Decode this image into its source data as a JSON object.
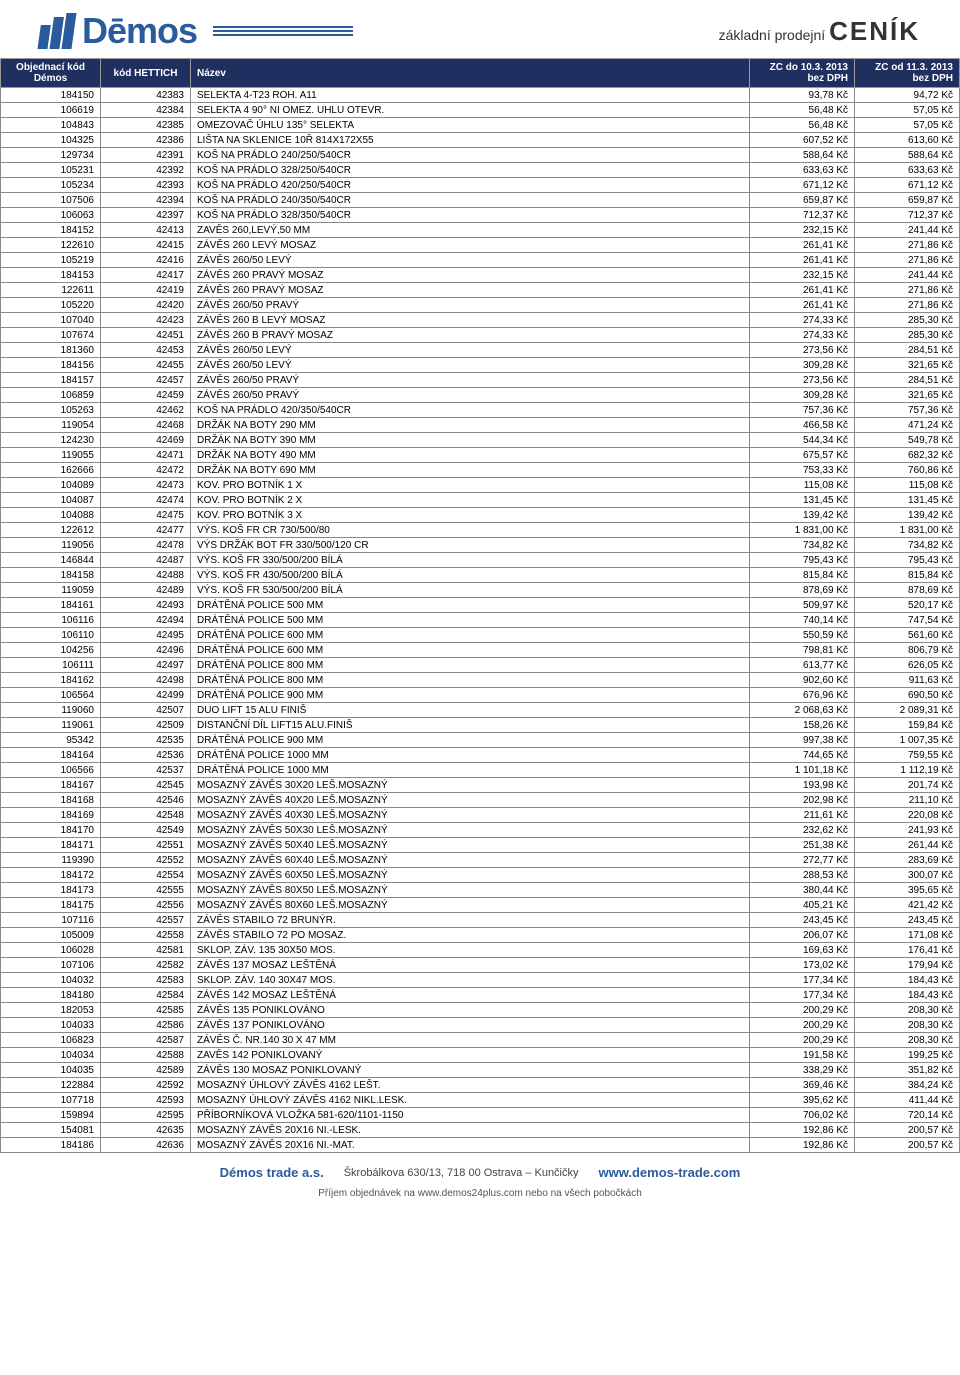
{
  "header": {
    "logo_text": "Dēmos",
    "tagline_prefix": "základní prodejní",
    "tagline_big": "CENÍK"
  },
  "columns": [
    {
      "label": "Objednací kód",
      "sub": "Démos"
    },
    {
      "label": "kód HETTICH"
    },
    {
      "label": "Název"
    },
    {
      "label": "ZC do 10.3. 2013",
      "sub": "bez DPH"
    },
    {
      "label": "ZC od 11.3. 2013",
      "sub": "bez DPH"
    }
  ],
  "rows": [
    [
      "184150",
      "42383",
      "SELEKTA 4-T23 ROH. A11",
      "93,78 Kč",
      "94,72 Kč"
    ],
    [
      "106619",
      "42384",
      "SELEKTA 4 90° NI OMEZ. UHLU OTEVR.",
      "56,48 Kč",
      "57,05 Kč"
    ],
    [
      "104843",
      "42385",
      "OMEZOVAČ ÚHLU 135° SELEKTA",
      "56,48 Kč",
      "57,05 Kč"
    ],
    [
      "104325",
      "42386",
      "LIŠTA NA SKLENICE 10Ř 814X172X55",
      "607,52 Kč",
      "613,60 Kč"
    ],
    [
      "129734",
      "42391",
      "KOŠ NA PRÁDLO 240/250/540CR",
      "588,64 Kč",
      "588,64 Kč"
    ],
    [
      "105231",
      "42392",
      "KOŠ NA PRÁDLO 328/250/540CR",
      "633,63 Kč",
      "633,63 Kč"
    ],
    [
      "105234",
      "42393",
      "KOŠ NA PRÁDLO 420/250/540CR",
      "671,12 Kč",
      "671,12 Kč"
    ],
    [
      "107506",
      "42394",
      "KOŠ NA PRÁDLO 240/350/540CR",
      "659,87 Kč",
      "659,87 Kč"
    ],
    [
      "106063",
      "42397",
      "KOŠ NA PRÁDLO 328/350/540CR",
      "712,37 Kč",
      "712,37 Kč"
    ],
    [
      "184152",
      "42413",
      "ZAVĚS 260,LEVÝ,50 MM",
      "232,15 Kč",
      "241,44 Kč"
    ],
    [
      "122610",
      "42415",
      "ZÁVĚS 260 LEVÝ MOSAZ",
      "261,41 Kč",
      "271,86 Kč"
    ],
    [
      "105219",
      "42416",
      "ZÁVĚS 260/50 LEVÝ",
      "261,41 Kč",
      "271,86 Kč"
    ],
    [
      "184153",
      "42417",
      "ZÁVĚS 260 PRAVÝ MOSAZ",
      "232,15 Kč",
      "241,44 Kč"
    ],
    [
      "122611",
      "42419",
      "ZÁVĚS 260 PRAVÝ MOSAZ",
      "261,41 Kč",
      "271,86 Kč"
    ],
    [
      "105220",
      "42420",
      "ZÁVĚS 260/50 PRAVÝ",
      "261,41 Kč",
      "271,86 Kč"
    ],
    [
      "107040",
      "42423",
      "ZÁVĚS 260 B LEVÝ MOSAZ",
      "274,33 Kč",
      "285,30 Kč"
    ],
    [
      "107674",
      "42451",
      "ZÁVĚS 260 B PRAVÝ MOSAZ",
      "274,33 Kč",
      "285,30 Kč"
    ],
    [
      "181360",
      "42453",
      "ZÁVĚS 260/50 LEVÝ",
      "273,56 Kč",
      "284,51 Kč"
    ],
    [
      "184156",
      "42455",
      "ZÁVĚS 260/50 LEVÝ",
      "309,28 Kč",
      "321,65 Kč"
    ],
    [
      "184157",
      "42457",
      "ZÁVĚS 260/50 PRAVÝ",
      "273,56 Kč",
      "284,51 Kč"
    ],
    [
      "106859",
      "42459",
      "ZÁVĚS 260/50 PRAVÝ",
      "309,28 Kč",
      "321,65 Kč"
    ],
    [
      "105263",
      "42462",
      "KOŠ NA PRÁDLO 420/350/540CR",
      "757,36 Kč",
      "757,36 Kč"
    ],
    [
      "119054",
      "42468",
      "DRŽÁK  NA BOTY 290 MM",
      "466,58 Kč",
      "471,24 Kč"
    ],
    [
      "124230",
      "42469",
      "DRŽÁK  NA BOTY 390 MM",
      "544,34 Kč",
      "549,78 Kč"
    ],
    [
      "119055",
      "42471",
      "DRŽÁK  NA BOTY 490 MM",
      "675,57 Kč",
      "682,32 Kč"
    ],
    [
      "162666",
      "42472",
      "DRŽÁK  NA BOTY 690 MM",
      "753,33 Kč",
      "760,86 Kč"
    ],
    [
      "104089",
      "42473",
      "KOV. PRO BOTNÍK 1 X",
      "115,08 Kč",
      "115,08 Kč"
    ],
    [
      "104087",
      "42474",
      "KOV. PRO BOTNÍK 2 X",
      "131,45 Kč",
      "131,45 Kč"
    ],
    [
      "104088",
      "42475",
      "KOV. PRO BOTNÍK 3 X",
      "139,42 Kč",
      "139,42 Kč"
    ],
    [
      "122612",
      "42477",
      "VÝS. KOŠ FR CR 730/500/80",
      "1 831,00 Kč",
      "1 831,00 Kč"
    ],
    [
      "119056",
      "42478",
      "VÝS DRŽÁK  BOT FR 330/500/120 CR",
      "734,82 Kč",
      "734,82 Kč"
    ],
    [
      "146844",
      "42487",
      "VÝS. KOŠ FR 330/500/200 BÍLÁ",
      "795,43 Kč",
      "795,43 Kč"
    ],
    [
      "184158",
      "42488",
      "VÝS. KOŠ FR 430/500/200 BÍLÁ",
      "815,84 Kč",
      "815,84 Kč"
    ],
    [
      "119059",
      "42489",
      "VÝS. KOŠ FR 530/500/200 BÍLÁ",
      "878,69 Kč",
      "878,69 Kč"
    ],
    [
      "184161",
      "42493",
      "DRÁTĚNÁ POLICE 500 MM",
      "509,97 Kč",
      "520,17 Kč"
    ],
    [
      "106116",
      "42494",
      "DRÁTĚNÁ POLICE 500 MM",
      "740,14 Kč",
      "747,54 Kč"
    ],
    [
      "106110",
      "42495",
      "DRÁTĚNÁ POLICE 600 MM",
      "550,59 Kč",
      "561,60 Kč"
    ],
    [
      "104256",
      "42496",
      "DRÁTĚNÁ POLICE 600 MM",
      "798,81 Kč",
      "806,79 Kč"
    ],
    [
      "106111",
      "42497",
      "DRÁTĚNÁ POLICE 800 MM",
      "613,77 Kč",
      "626,05 Kč"
    ],
    [
      "184162",
      "42498",
      "DRÁTĚNÁ POLICE 800 MM",
      "902,60 Kč",
      "911,63 Kč"
    ],
    [
      "106564",
      "42499",
      "DRÁTĚNÁ POLICE 900 MM",
      "676,96 Kč",
      "690,50 Kč"
    ],
    [
      "119060",
      "42507",
      "DUO LIFT 15 ALU FINIŠ",
      "2 068,63 Kč",
      "2 089,31 Kč"
    ],
    [
      "119061",
      "42509",
      "DISTANČNÍ DÍL LIFT15 ALU.FINIŠ",
      "158,26 Kč",
      "159,84 Kč"
    ],
    [
      "95342",
      "42535",
      "DRÁTĚNÁ POLICE 900 MM",
      "997,38 Kč",
      "1 007,35 Kč"
    ],
    [
      "184164",
      "42536",
      "DRÁTĚNÁ POLICE 1000 MM",
      "744,65 Kč",
      "759,55 Kč"
    ],
    [
      "106566",
      "42537",
      "DRÁTĚNÁ POLICE 1000 MM",
      "1 101,18 Kč",
      "1 112,19 Kč"
    ],
    [
      "184167",
      "42545",
      "MOSAZNÝ ZÁVĚS 30X20 LEŠ.MOSAZNÝ",
      "193,98 Kč",
      "201,74 Kč"
    ],
    [
      "184168",
      "42546",
      "MOSAZNÝ ZÁVĚS 40X20 LEŠ.MOSAZNÝ",
      "202,98 Kč",
      "211,10 Kč"
    ],
    [
      "184169",
      "42548",
      "MOSAZNÝ ZÁVĚS 40X30 LEŠ.MOSAZNÝ",
      "211,61 Kč",
      "220,08 Kč"
    ],
    [
      "184170",
      "42549",
      "MOSAZNÝ ZÁVĚS 50X30 LEŠ.MOSAZNÝ",
      "232,62 Kč",
      "241,93 Kč"
    ],
    [
      "184171",
      "42551",
      "MOSAZNÝ ZÁVĚS 50X40 LEŠ.MOSAZNÝ",
      "251,38 Kč",
      "261,44 Kč"
    ],
    [
      "119390",
      "42552",
      "MOSAZNÝ ZÁVĚS 60X40 LEŠ.MOSAZNÝ",
      "272,77 Kč",
      "283,69 Kč"
    ],
    [
      "184172",
      "42554",
      "MOSAZNÝ ZÁVĚS 60X50 LEŠ.MOSAZNÝ",
      "288,53 Kč",
      "300,07 Kč"
    ],
    [
      "184173",
      "42555",
      "MOSAZNÝ ZÁVĚS 80X50 LEŠ.MOSAZNÝ",
      "380,44 Kč",
      "395,65 Kč"
    ],
    [
      "184175",
      "42556",
      "MOSAZNÝ ZÁVĚS 80X60 LEŠ.MOSAZNÝ",
      "405,21 Kč",
      "421,42 Kč"
    ],
    [
      "107116",
      "42557",
      "ZÁVĚS STABILO 72 BRUNÝR.",
      "243,45 Kč",
      "243,45 Kč"
    ],
    [
      "105009",
      "42558",
      "ZÁVĚS STABILO 72 PO MOSAZ.",
      "206,07 Kč",
      "171,08 Kč"
    ],
    [
      "106028",
      "42581",
      "SKLOP. ZÁV. 135 30X50 MOS.",
      "169,63 Kč",
      "176,41 Kč"
    ],
    [
      "107106",
      "42582",
      "ZÁVĚS 137 MOSAZ LEŠTĚNÁ",
      "173,02 Kč",
      "179,94 Kč"
    ],
    [
      "104032",
      "42583",
      "SKLOP. ZÁV. 140 30X47 MOS.",
      "177,34 Kč",
      "184,43 Kč"
    ],
    [
      "184180",
      "42584",
      "ZÁVĚS 142 MOSAZ LEŠTĚNÁ",
      "177,34 Kč",
      "184,43 Kč"
    ],
    [
      "182053",
      "42585",
      "ZÁVĚS 135 PONIKLOVÁNO",
      "200,29 Kč",
      "208,30 Kč"
    ],
    [
      "104033",
      "42586",
      "ZÁVĚS 137 PONIKLOVÁNO",
      "200,29 Kč",
      "208,30 Kč"
    ],
    [
      "106823",
      "42587",
      "ZÁVĚS Č. NR.140 30 X 47 MM",
      "200,29 Kč",
      "208,30 Kč"
    ],
    [
      "104034",
      "42588",
      "ZAVĚS 142 PONIKLOVANÝ",
      "191,58 Kč",
      "199,25 Kč"
    ],
    [
      "104035",
      "42589",
      "ZÁVĚS 130 MOSAZ PONIKLOVANÝ",
      "338,29 Kč",
      "351,82 Kč"
    ],
    [
      "122884",
      "42592",
      "MOSAZNÝ ÚHLOVÝ ZÁVĚS 4162 LEŠT.",
      "369,46 Kč",
      "384,24 Kč"
    ],
    [
      "107718",
      "42593",
      "MOSAZNÝ ÚHLOVÝ ZÁVĚS 4162 NIKL.LESK.",
      "395,62 Kč",
      "411,44 Kč"
    ],
    [
      "159894",
      "42595",
      "PŘÍBORNÍKOVÁ VLOŽKA 581-620/1101-1150",
      "706,02 Kč",
      "720,14 Kč"
    ],
    [
      "154081",
      "42635",
      "MOSAZNÝ ZÁVĚS 20X16 NI.-LESK.",
      "192,86 Kč",
      "200,57 Kč"
    ],
    [
      "184186",
      "42636",
      "MOSAZNÝ ZÁVĚS 20X16 NI.-MAT.",
      "192,86 Kč",
      "200,57 Kč"
    ]
  ],
  "footer": {
    "company": "Démos trade a.s.",
    "address": "Škrobálkova 630/13, 718 00 Ostrava – Kunčičky",
    "url": "www.demos-trade.com",
    "sub": "Příjem objednávek na www.demos24plus.com nebo na všech pobočkách"
  },
  "colors": {
    "header_bg": "#1f2f5f",
    "brand": "#2a5b9c",
    "border": "#888888"
  }
}
